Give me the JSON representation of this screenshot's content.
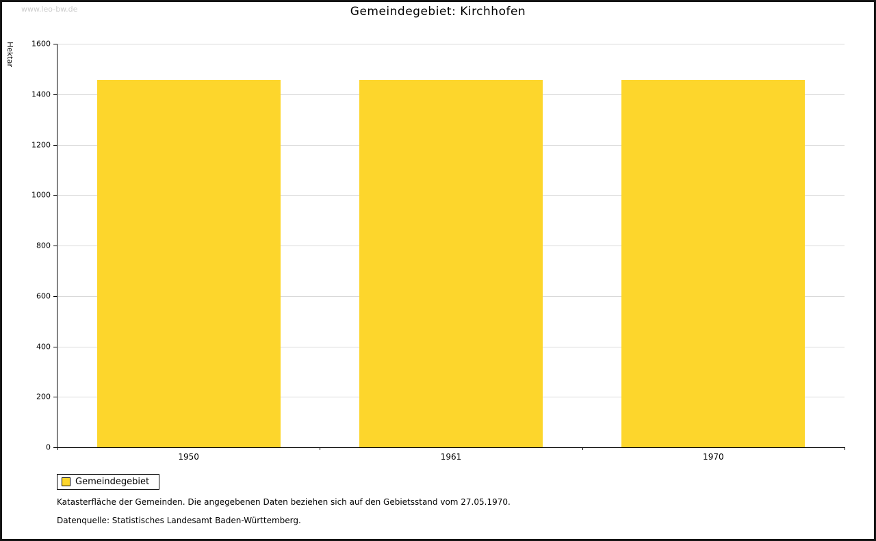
{
  "watermark": "www.leo-bw.de",
  "chart_data": {
    "type": "bar",
    "title": "Gemeindegebiet: Kirchhofen",
    "xlabel": "",
    "ylabel": "Hektar",
    "categories": [
      "1950",
      "1961",
      "1970"
    ],
    "series": [
      {
        "name": "Gemeindegebiet",
        "values": [
          1456,
          1456,
          1456
        ]
      }
    ],
    "ylim": [
      0,
      1600
    ],
    "ytick_step": 200,
    "grid": true,
    "legend_position": "bottom-left",
    "bar_color": "#fdd62c",
    "gridline_color": "#d9d9d9"
  },
  "footnotes": [
    "Katasterfläche der Gemeinden. Die angegebenen Daten beziehen sich auf den Gebietsstand vom 27.05.1970.",
    "Datenquelle: Statistisches Landesamt Baden-Württemberg."
  ]
}
